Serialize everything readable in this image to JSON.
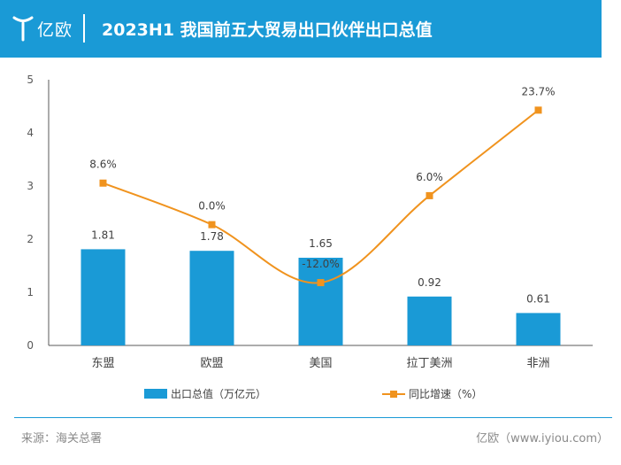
{
  "header": {
    "brand": "亿欧",
    "title": "2023H1 我国前五大贸易出口伙伴出口总值"
  },
  "chart_data": {
    "type": "bar",
    "title": "2023H1 我国前五大贸易出口伙伴出口总值",
    "categories": [
      "东盟",
      "欧盟",
      "美国",
      "拉丁美洲",
      "非洲"
    ],
    "series": [
      {
        "name": "出口总值（万亿元）",
        "kind": "bar",
        "axis": "left",
        "values": [
          1.81,
          1.78,
          1.65,
          0.92,
          0.61
        ],
        "labels": [
          "1.81",
          "1.78",
          "1.65",
          "0.92",
          "0.61"
        ]
      },
      {
        "name": "同比增速（%）",
        "kind": "line",
        "axis": "right",
        "values": [
          8.6,
          0.0,
          -12.0,
          6.0,
          23.7
        ],
        "labels": [
          "8.6%",
          "0.0%",
          "-12.0%",
          "6.0%",
          "23.7%"
        ]
      }
    ],
    "yticks": [
      "0",
      "1",
      "2",
      "3",
      "4",
      "5"
    ],
    "ylim": [
      0,
      5
    ],
    "y2lim": [
      -25,
      30
    ],
    "legend_position": "bottom",
    "colors": {
      "bar": "#1a9ad6",
      "line": "#f0931e",
      "axis": "#595959"
    }
  },
  "footer": {
    "source": "来源：海关总署",
    "site": "亿欧（www.iyiou.com）"
  }
}
